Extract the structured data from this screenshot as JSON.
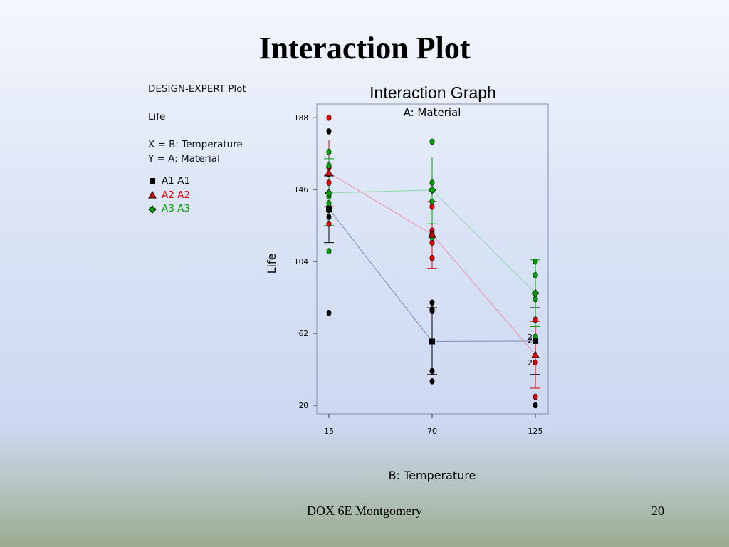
{
  "slide": {
    "title": "Interaction Plot",
    "footer": "DOX 6E Montgomery",
    "page_number": "20"
  },
  "info_panel": {
    "software": "DESIGN-EXPERT Plot",
    "response": "Life",
    "x_factor": "X = B: Temperature",
    "y_factor": "Y = A: Material"
  },
  "colors": {
    "A1": "#000000",
    "A2": "#e00000",
    "A3": "#00a000",
    "connector_A1": "#7a8db8",
    "connector_A2": "#f08aa0",
    "connector_A3": "#8fd6a6",
    "frame": "#8090b0"
  },
  "chart_data": {
    "type": "scatter",
    "title": "Interaction Graph",
    "subtitle": "A: Material",
    "xlabel": "B: Temperature",
    "ylabel": "Life",
    "x_categories": [
      "15",
      "70",
      "125"
    ],
    "y_ticks": [
      20,
      62,
      104,
      146,
      188
    ],
    "ylim": [
      15,
      196
    ],
    "series": [
      {
        "name": "A1",
        "label": "A1  A1",
        "marker": "square",
        "color_key": "A1",
        "means": [
          134.75,
          57.25,
          57.5
        ],
        "error_bars": [
          [
            115,
            154
          ],
          [
            38,
            77
          ],
          [
            38,
            77
          ]
        ],
        "observations": [
          [
            130,
            155,
            74,
            180,
            134,
            159
          ],
          [
            34,
            40,
            80,
            75,
            76,
            0
          ],
          [
            20,
            70,
            82,
            58,
            0,
            0
          ]
        ],
        "replicate_labels": [
          "",
          "",
          "2"
        ]
      },
      {
        "name": "A2",
        "label": "A2  A2",
        "marker": "triangle",
        "color_key": "A2",
        "means": [
          155.75,
          119.75,
          49.5
        ],
        "error_bars": [
          [
            136,
            175
          ],
          [
            100,
            139
          ],
          [
            30,
            69
          ]
        ],
        "observations": [
          [
            150,
            188,
            159,
            126,
            136,
            0
          ],
          [
            122,
            106,
            115,
            120,
            136,
            0
          ],
          [
            25,
            70,
            58,
            45,
            0,
            0
          ]
        ],
        "replicate_labels": [
          "",
          "",
          "2"
        ]
      },
      {
        "name": "A3",
        "label": "A3  A3",
        "marker": "diamond",
        "color_key": "A3",
        "means": [
          144,
          145.75,
          85.5
        ],
        "error_bars": [
          [
            125,
            164
          ],
          [
            126,
            165
          ],
          [
            66,
            105
          ]
        ],
        "observations": [
          [
            138,
            110,
            168,
            160,
            142,
            0
          ],
          [
            174,
            150,
            139,
            120,
            118,
            0
          ],
          [
            96,
            82,
            104,
            60,
            0,
            0
          ]
        ],
        "replicate_labels": [
          "",
          "",
          "2"
        ]
      }
    ]
  }
}
